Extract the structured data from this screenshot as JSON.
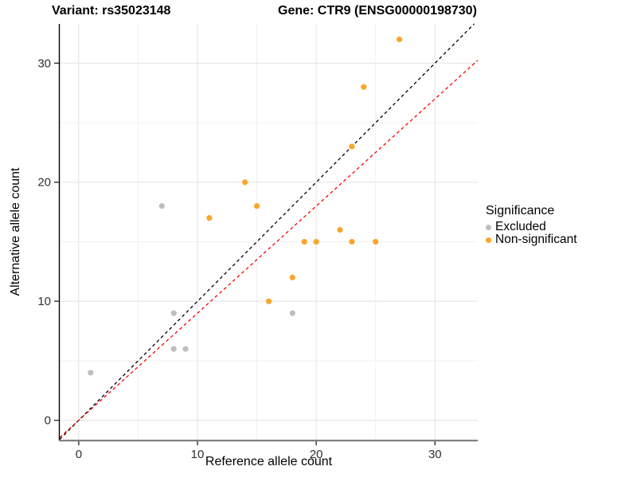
{
  "titles": {
    "left": "Variant: rs35023148",
    "right": "Gene: CTR9 (ENSG00000198730)"
  },
  "chart_data": {
    "type": "scatter",
    "xlabel": "Reference allele count",
    "ylabel": "Alternative allele count",
    "x_ticks": [
      0,
      10,
      20,
      30
    ],
    "y_ticks": [
      0,
      10,
      20,
      30
    ],
    "x_minor_ticks": [
      5,
      15,
      25
    ],
    "y_minor_ticks": [
      5,
      15,
      25
    ],
    "xlim": [
      -1.6,
      33.6
    ],
    "ylim": [
      -1.7,
      33.3
    ],
    "grid": "major and minor gridlines, white panel",
    "legend": {
      "title": "Significance",
      "position": "right"
    },
    "series": [
      {
        "name": "Excluded",
        "color": "#BEBEBE",
        "points": [
          [
            1,
            4
          ],
          [
            7,
            18
          ],
          [
            8,
            6
          ],
          [
            8,
            9
          ],
          [
            9,
            6
          ],
          [
            18,
            9
          ]
        ]
      },
      {
        "name": "Non-significant",
        "color": "#F9A62A",
        "points": [
          [
            11,
            17
          ],
          [
            14,
            20
          ],
          [
            15,
            18
          ],
          [
            16,
            10
          ],
          [
            18,
            12
          ],
          [
            19,
            15
          ],
          [
            20,
            15
          ],
          [
            22,
            16
          ],
          [
            23,
            15
          ],
          [
            23,
            23
          ],
          [
            24,
            28
          ],
          [
            25,
            15
          ],
          [
            27,
            32
          ]
        ]
      }
    ],
    "reference_lines": [
      {
        "name": "identity-line",
        "slope": 1.0,
        "intercept": 0,
        "color": "#000000",
        "style": "dashed"
      },
      {
        "name": "expected-ratio-line",
        "slope": 0.9,
        "intercept": 0,
        "color": "#FF0000",
        "style": "dashed"
      }
    ],
    "style_colors": {
      "grid_major": "#E3E3E3",
      "grid_minor": "#F2F2F2",
      "axis_line_left": "#000000",
      "axis_line_bottom": "#808080",
      "tick_label": "#303030"
    }
  }
}
